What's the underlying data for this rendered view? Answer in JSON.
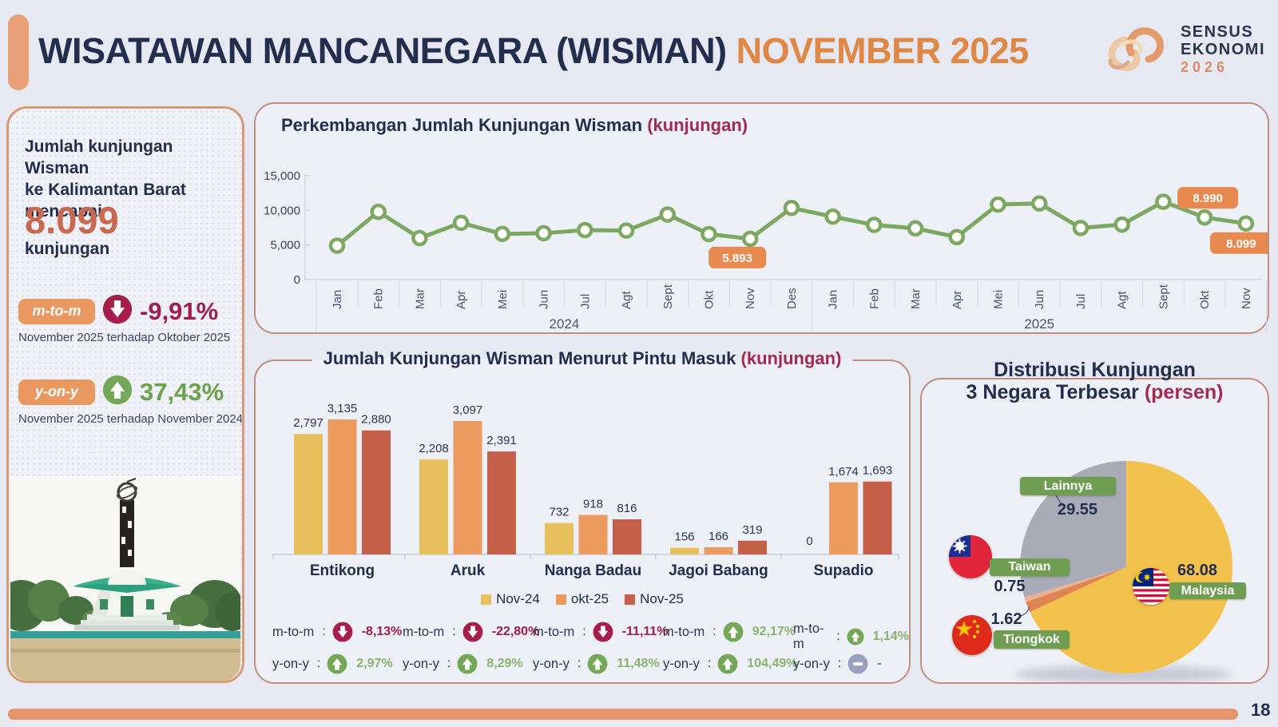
{
  "header": {
    "title": "WISATAWAN MANCANEGARA (WISMAN)",
    "period": "NOVEMBER 2025",
    "logo": {
      "line1": "SENSUS",
      "line2": "EKONOMI",
      "year": "2026"
    }
  },
  "summary": {
    "intro_lines": [
      "Jumlah kunjungan Wisman",
      "ke Kalimantan Barat",
      "mencapai"
    ],
    "value": "8.099",
    "unit": "kunjungan",
    "mtm": {
      "label": "m-to-m",
      "value": "-9,91%",
      "direction": "down",
      "caption": "November 2025 terhadap Oktober 2025"
    },
    "yoy": {
      "label": "y-on-y",
      "value": "37,43%",
      "direction": "up",
      "caption": "November 2025 terhadap November 2024"
    }
  },
  "chart_data": [
    {
      "type": "line",
      "title": "Perkembangan Jumlah Kunjungan Wisman",
      "unit_label": "(kunjungan)",
      "x": [
        "Jan",
        "Feb",
        "Mar",
        "Apr",
        "Mei",
        "Jun",
        "Jul",
        "Agt",
        "Sept",
        "Okt",
        "Nov",
        "Des",
        "Jan",
        "Feb",
        "Mar",
        "Apr",
        "Mei",
        "Jun",
        "Jul",
        "Agt",
        "Sept",
        "Okt",
        "Nov"
      ],
      "year_groups": [
        {
          "label": "2024",
          "count": 12
        },
        {
          "label": "2025",
          "count": 11
        }
      ],
      "values": [
        4900,
        9800,
        6000,
        8200,
        6600,
        6700,
        7150,
        7080,
        9400,
        6580,
        5893,
        10350,
        9100,
        7900,
        7400,
        6150,
        10850,
        11000,
        7460,
        7950,
        11250,
        8990,
        8099
      ],
      "ylim": [
        0,
        15000
      ],
      "yticks": [
        0,
        5000,
        10000,
        15000
      ],
      "ytick_labels": [
        "0",
        "5,000",
        "10,000",
        "15,000"
      ],
      "line_color": "#7da861",
      "callouts": [
        {
          "index": 10,
          "label": "5.893",
          "placement": "below-left"
        },
        {
          "index": 21,
          "label": "8.990",
          "placement": "above-left"
        },
        {
          "index": 22,
          "label": "8.099",
          "placement": "below-right"
        }
      ]
    },
    {
      "type": "bar",
      "title": "Jumlah Kunjungan Wisman Menurut Pintu Masuk",
      "unit_label": "(kunjungan)",
      "categories": [
        "Entikong",
        "Aruk",
        "Nanga Badau",
        "Jagoi Babang",
        "Supadio"
      ],
      "series": [
        {
          "name": "Nov-24",
          "color": "#e9c05e",
          "values": [
            2797,
            2208,
            732,
            156,
            0
          ]
        },
        {
          "name": "okt-25",
          "color": "#ec9a5e",
          "values": [
            3135,
            3097,
            918,
            166,
            1674
          ]
        },
        {
          "name": "Nov-25",
          "color": "#c4604a",
          "values": [
            2880,
            2391,
            816,
            319,
            1693
          ]
        }
      ],
      "stat_row_labels": {
        "mtm": "m-to-m",
        "yoy": "y-on-y"
      },
      "stats": [
        {
          "category": "Entikong",
          "mtm": {
            "direction": "down",
            "value": "-8,13%"
          },
          "yoy": {
            "direction": "up",
            "value": "2,97%"
          }
        },
        {
          "category": "Aruk",
          "mtm": {
            "direction": "down",
            "value": "-22,80%"
          },
          "yoy": {
            "direction": "up",
            "value": "8,29%"
          }
        },
        {
          "category": "Nanga Badau",
          "mtm": {
            "direction": "down",
            "value": "-11,11%"
          },
          "yoy": {
            "direction": "up",
            "value": "11,48%"
          }
        },
        {
          "category": "Jagoi Babang",
          "mtm": {
            "direction": "up",
            "value": "92,17%"
          },
          "yoy": {
            "direction": "up",
            "value": "104,49%"
          }
        },
        {
          "category": "Supadio",
          "mtm": {
            "direction": "up",
            "value": "1,14%"
          },
          "yoy": {
            "direction": "neutral",
            "value": "-"
          }
        }
      ]
    },
    {
      "type": "pie",
      "title": "Distribusi Kunjungan",
      "title_line2": "3 Negara Terbesar",
      "unit_label": "(persen)",
      "slices": [
        {
          "name": "Malaysia",
          "value": 68.08,
          "color": "#f2c24d"
        },
        {
          "name": "Tiongkok",
          "value": 1.62,
          "color": "#df8551"
        },
        {
          "name": "Taiwan",
          "value": 0.75,
          "color": "#ecb092"
        },
        {
          "name": "Lainnya",
          "value": 29.55,
          "color": "#a9abb6"
        }
      ],
      "value_labels": {
        "malaysia": "68.08",
        "lainnya": "29.55",
        "taiwan": "0.75",
        "tiongkok": "1.62"
      }
    }
  ],
  "footer": {
    "page": "18"
  }
}
